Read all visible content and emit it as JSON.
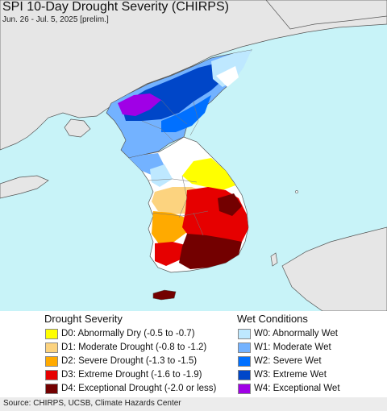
{
  "map": {
    "title": "SPI 10-Day Drought Severity (CHIRPS)",
    "subtitle": "Jun. 26 - Jul. 5, 2025 [prelim.]",
    "colors": {
      "water": "#c8f3f8",
      "land_no_data": "#e6e6e6",
      "normal": "#ffffff"
    }
  },
  "legend": {
    "drought": {
      "heading": "Drought Severity",
      "items": [
        {
          "label": "D0: Abnormally Dry (-0.5 to -0.7)",
          "color": "#ffff00"
        },
        {
          "label": "D1: Moderate Drought (-0.8 to -1.2)",
          "color": "#fcd37f"
        },
        {
          "label": "D2: Severe Drought (-1.3 to -1.5)",
          "color": "#ffaa00"
        },
        {
          "label": "D3: Extreme Drought (-1.6 to -1.9)",
          "color": "#e60000"
        },
        {
          "label": "D4: Exceptional Drought (-2.0 or less)",
          "color": "#730000"
        }
      ]
    },
    "wet": {
      "heading": "Wet Conditions",
      "items": [
        {
          "label": "W0: Abnormally Wet",
          "color": "#bee8ff"
        },
        {
          "label": "W1: Moderate Wet",
          "color": "#73b2ff"
        },
        {
          "label": "W2: Severe Wet",
          "color": "#0070ff"
        },
        {
          "label": "W3: Extreme Wet",
          "color": "#0046c8"
        },
        {
          "label": "W4: Exceptional Wet",
          "color": "#a000e6"
        }
      ]
    }
  },
  "footer": {
    "source": "Source: CHIRPS, UCSB, Climate Hazards Center"
  }
}
